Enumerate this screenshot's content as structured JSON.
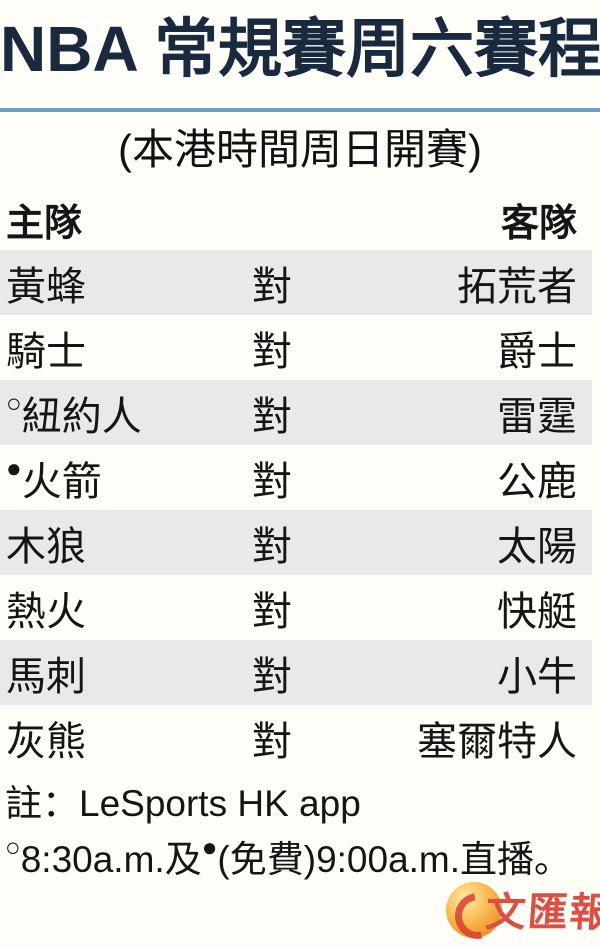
{
  "title": "NBA 常規賽周六賽程",
  "subtitle": "(本港時間周日開賽)",
  "table": {
    "home_header": "主隊",
    "away_header": "客隊",
    "vs_label": "對",
    "rows": [
      {
        "marker": "",
        "home": "黃蜂",
        "away": "拓荒者"
      },
      {
        "marker": "",
        "home": "騎士",
        "away": "爵士"
      },
      {
        "marker": "○",
        "home": "紐約人",
        "away": "雷霆"
      },
      {
        "marker": "●",
        "home": "火箭",
        "away": "公鹿"
      },
      {
        "marker": "",
        "home": "木狼",
        "away": "太陽"
      },
      {
        "marker": "",
        "home": "熱火",
        "away": "快艇"
      },
      {
        "marker": "",
        "home": "馬刺",
        "away": "小牛"
      },
      {
        "marker": "",
        "home": "灰熊",
        "away": "塞爾特人"
      }
    ]
  },
  "notes": {
    "line1": "註：LeSports HK app",
    "line2_marker1": "○",
    "line2_text1": "8:30a.m.及",
    "line2_marker2": "●",
    "line2_text2": "(免費)9:00a.m.直播。"
  },
  "logo": {
    "text": "文匯報"
  },
  "colors": {
    "background": "#fffdf7",
    "title_navy": "#192a3e",
    "divider_blue": "#6f9fc5",
    "row_alt_gray": "#e9e9e9",
    "logo_red": "#dc4f43",
    "logo_gold": "#f2a93c"
  }
}
